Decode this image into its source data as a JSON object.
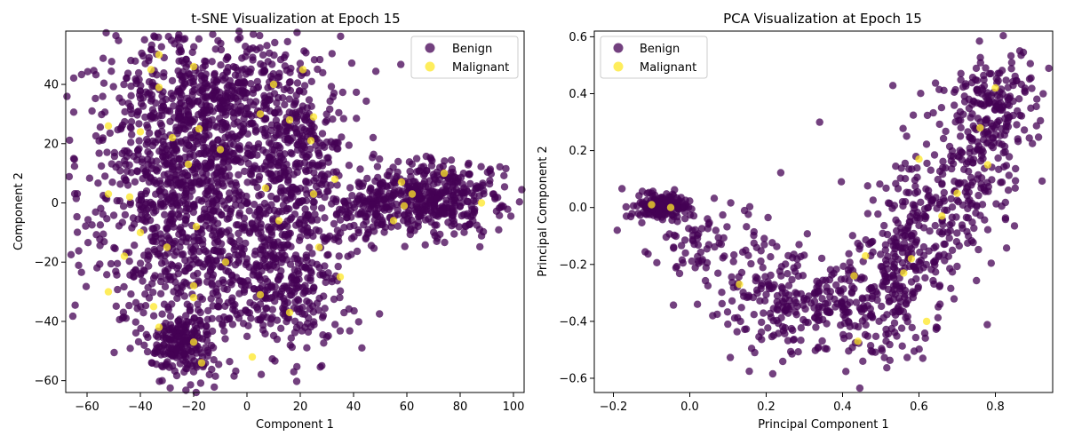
{
  "colors": {
    "benign": "#440154",
    "malignant": "#fde725"
  },
  "chart_data": [
    {
      "type": "scatter",
      "title": "t-SNE Visualization at Epoch 15",
      "xlabel": "Component 1",
      "ylabel": "Component 2",
      "xlim": [
        -68,
        104
      ],
      "ylim": [
        -64,
        58
      ],
      "xticks": [
        -60,
        -40,
        -20,
        0,
        20,
        40,
        60,
        80,
        100
      ],
      "yticks": [
        -60,
        -40,
        -20,
        0,
        20,
        40
      ],
      "grid": false,
      "legend": {
        "position": "top-right",
        "entries": [
          "Benign",
          "Malignant"
        ]
      },
      "series": [
        {
          "name": "Benign",
          "color": "#440154",
          "clusters": [
            {
              "cx": -22,
              "cy": 5,
              "sx": 18,
              "sy": 26,
              "n": 1200
            },
            {
              "cx": -5,
              "cy": 35,
              "sx": 20,
              "sy": 10,
              "n": 350
            },
            {
              "cx": 15,
              "cy": -25,
              "sx": 12,
              "sy": 14,
              "n": 350
            },
            {
              "cx": -25,
              "cy": -48,
              "sx": 6,
              "sy": 5,
              "n": 180
            },
            {
              "cx": 20,
              "cy": 12,
              "sx": 10,
              "sy": 12,
              "n": 250
            },
            {
              "cx": 70,
              "cy": 2,
              "sx": 14,
              "sy": 6,
              "n": 400
            },
            {
              "cx": 45,
              "cy": -2,
              "sx": 6,
              "sy": 5,
              "n": 100
            }
          ]
        },
        {
          "name": "Malignant",
          "color": "#fde725",
          "points": [
            [
              -33,
              50
            ],
            [
              -33,
              39
            ],
            [
              -20,
              46
            ],
            [
              21,
              45
            ],
            [
              10,
              40
            ],
            [
              25,
              29
            ],
            [
              -52,
              26
            ],
            [
              -40,
              24
            ],
            [
              -18,
              25
            ],
            [
              24,
              21
            ],
            [
              -22,
              13
            ],
            [
              33,
              8
            ],
            [
              58,
              7
            ],
            [
              74,
              10
            ],
            [
              62,
              3
            ],
            [
              25,
              3
            ],
            [
              -52,
              3
            ],
            [
              -19,
              -8
            ],
            [
              -40,
              -10
            ],
            [
              59,
              -1
            ],
            [
              88,
              0
            ],
            [
              -46,
              -18
            ],
            [
              27,
              -15
            ],
            [
              -52,
              -30
            ],
            [
              -20,
              -28
            ],
            [
              -20,
              -32
            ],
            [
              5,
              -31
            ],
            [
              -35,
              -35
            ],
            [
              -33,
              -42
            ],
            [
              16,
              -37
            ],
            [
              -20,
              -47
            ],
            [
              -17,
              -54
            ],
            [
              2,
              -52
            ],
            [
              -36,
              45
            ],
            [
              -10,
              18
            ],
            [
              7,
              5
            ],
            [
              12,
              -6
            ],
            [
              -30,
              -15
            ],
            [
              35,
              -25
            ],
            [
              -8,
              -20
            ],
            [
              5,
              30
            ],
            [
              -44,
              2
            ],
            [
              55,
              -6
            ],
            [
              -28,
              22
            ],
            [
              16,
              28
            ]
          ]
        }
      ]
    },
    {
      "type": "scatter",
      "title": "PCA Visualization at Epoch 15",
      "xlabel": "Principal Component 1",
      "ylabel": "Principal Component 2",
      "xlim": [
        -0.25,
        0.95
      ],
      "ylim": [
        -0.65,
        0.62
      ],
      "xticks": [
        -0.2,
        0.0,
        0.2,
        0.4,
        0.6,
        0.8
      ],
      "yticks": [
        -0.6,
        -0.4,
        -0.2,
        0.0,
        0.2,
        0.4,
        0.6
      ],
      "grid": false,
      "legend": {
        "position": "top-left",
        "entries": [
          "Benign",
          "Malignant"
        ]
      },
      "series": [
        {
          "name": "Benign",
          "color": "#440154",
          "clusters": [
            {
              "cx": -0.08,
              "cy": 0.0,
              "sx": 0.035,
              "sy": 0.025,
              "n": 160
            },
            {
              "cx": 0.02,
              "cy": -0.12,
              "sx": 0.05,
              "sy": 0.07,
              "n": 60
            },
            {
              "cx": 0.3,
              "cy": -0.35,
              "sx": 0.1,
              "sy": 0.09,
              "n": 200
            },
            {
              "cx": 0.5,
              "cy": -0.3,
              "sx": 0.07,
              "sy": 0.12,
              "n": 180
            },
            {
              "cx": 0.6,
              "cy": -0.1,
              "sx": 0.07,
              "sy": 0.12,
              "n": 170
            },
            {
              "cx": 0.72,
              "cy": 0.12,
              "sx": 0.07,
              "sy": 0.12,
              "n": 170
            },
            {
              "cx": 0.8,
              "cy": 0.38,
              "sx": 0.06,
              "sy": 0.09,
              "n": 170
            },
            {
              "cx": 0.18,
              "cy": -0.2,
              "sx": 0.07,
              "sy": 0.09,
              "n": 60
            }
          ],
          "points": [
            [
              -0.19,
              -0.08
            ],
            [
              0.34,
              0.3
            ],
            [
              0.02,
              -0.34
            ],
            [
              0.06,
              -0.38
            ],
            [
              0.61,
              -0.53
            ],
            [
              0.17,
              -0.51
            ]
          ]
        },
        {
          "name": "Malignant",
          "color": "#fde725",
          "points": [
            [
              -0.1,
              0.01
            ],
            [
              -0.05,
              0.0
            ],
            [
              0.78,
              0.15
            ],
            [
              0.46,
              -0.17
            ],
            [
              0.44,
              -0.47
            ],
            [
              0.13,
              -0.27
            ],
            [
              0.62,
              -0.4
            ],
            [
              0.56,
              -0.23
            ],
            [
              0.66,
              -0.03
            ],
            [
              0.6,
              0.17
            ],
            [
              0.76,
              0.28
            ],
            [
              0.8,
              0.42
            ],
            [
              0.43,
              -0.24
            ],
            [
              0.58,
              -0.18
            ],
            [
              0.7,
              0.05
            ]
          ]
        }
      ]
    }
  ]
}
